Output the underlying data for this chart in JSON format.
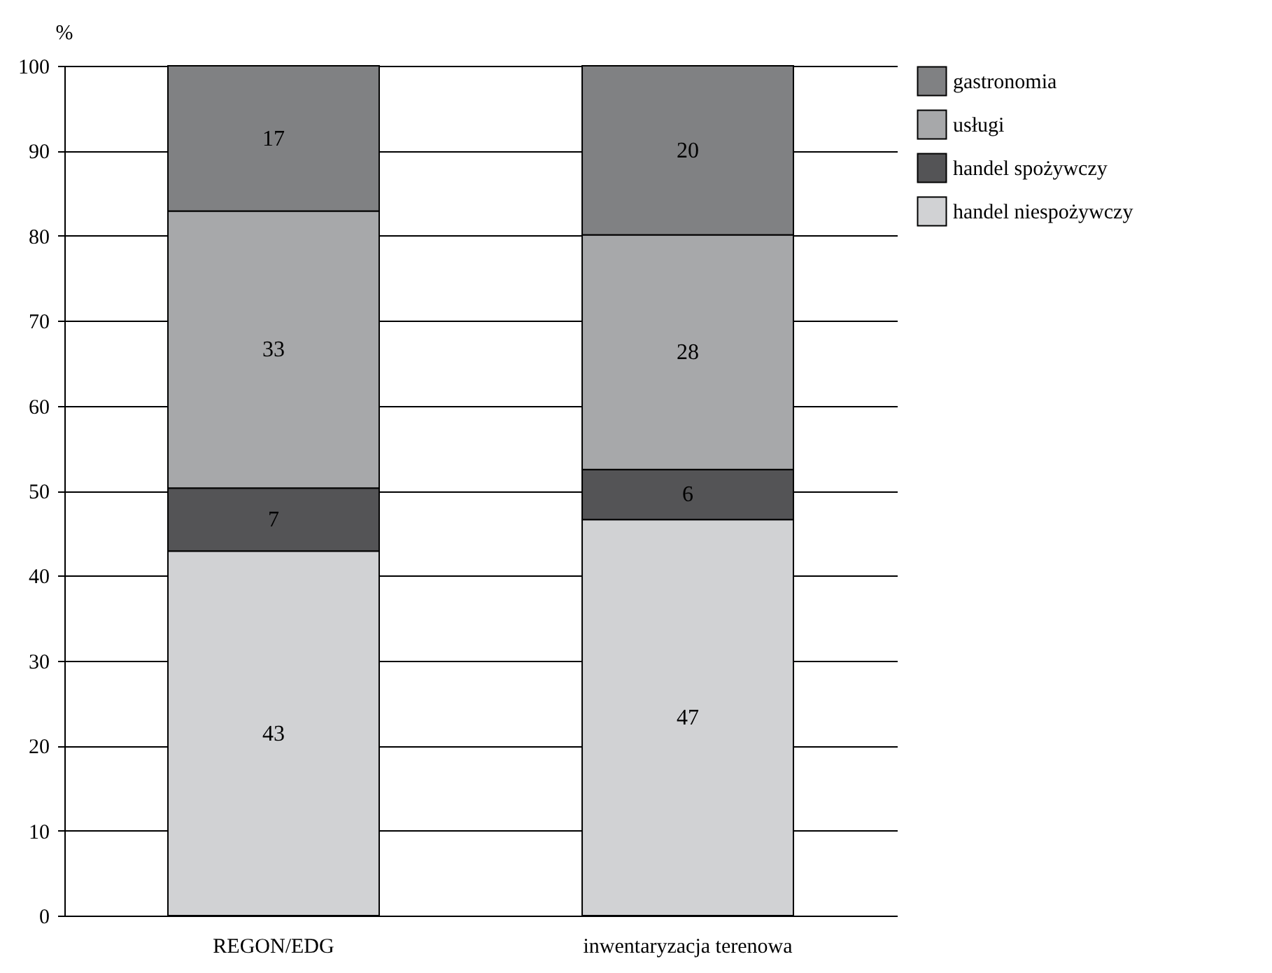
{
  "chart_data": {
    "type": "bar",
    "stacked": true,
    "ylabel": "%",
    "categories": [
      "REGON/EDG",
      "inwentaryzacja terenowa"
    ],
    "series": [
      {
        "name": "handel niespożywczy",
        "color": "#d1d2d4",
        "values": [
          42.9,
          46.6
        ],
        "value_labels": [
          "43",
          "47"
        ]
      },
      {
        "name": "handel spożywczy",
        "color": "#545456",
        "values": [
          7.4,
          5.9
        ],
        "value_labels": [
          "7",
          "6"
        ]
      },
      {
        "name": "usługi",
        "color": "#a7a8aa",
        "values": [
          32.6,
          27.6
        ],
        "value_labels": [
          "33",
          "28"
        ]
      },
      {
        "name": "gastronomia",
        "color": "#808183",
        "values": [
          17.1,
          19.9
        ],
        "value_labels": [
          "17",
          "20"
        ]
      }
    ],
    "ylim": [
      0,
      100
    ],
    "yticks": [
      0,
      10,
      20,
      30,
      40,
      50,
      60,
      70,
      80,
      90,
      100
    ],
    "grid": "y",
    "legend": "right"
  }
}
